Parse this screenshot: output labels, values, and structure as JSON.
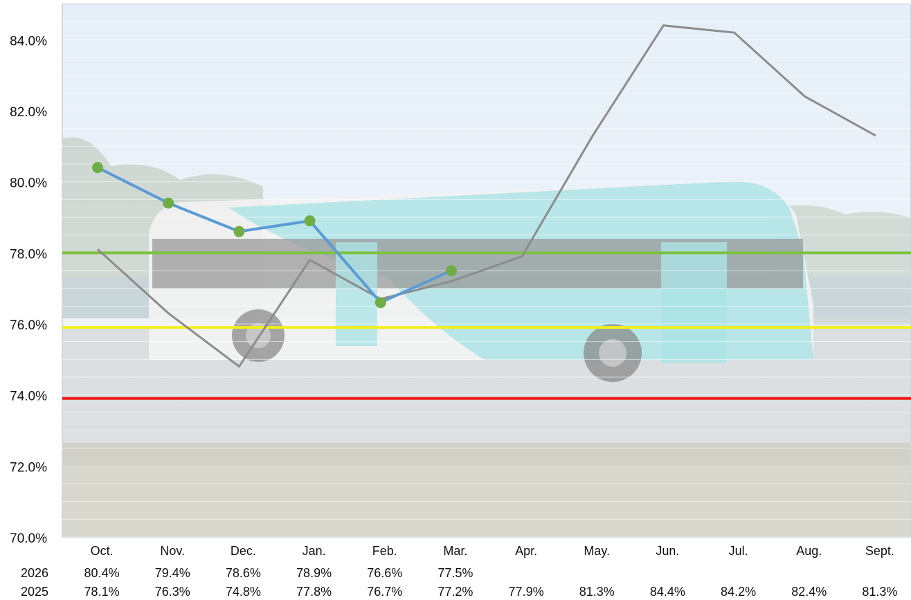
{
  "chart_data": {
    "type": "line",
    "categories": [
      "Oct.",
      "Nov.",
      "Dec.",
      "Jan.",
      "Feb.",
      "Mar.",
      "Apr.",
      "May.",
      "Jun.",
      "Jul.",
      "Aug.",
      "Sept."
    ],
    "series": [
      {
        "name": "2026",
        "values": [
          80.4,
          79.4,
          78.6,
          78.9,
          76.6,
          77.5,
          null,
          null,
          null,
          null,
          null,
          null
        ],
        "labels": [
          "80.4%",
          "79.4%",
          "78.6%",
          "78.9%",
          "76.6%",
          "77.5%",
          "",
          "",
          "",
          "",
          "",
          ""
        ],
        "color": "#5b9bd5",
        "marker_color": "#70ad47"
      },
      {
        "name": "2025",
        "values": [
          78.1,
          76.3,
          74.8,
          77.8,
          76.7,
          77.2,
          77.9,
          81.3,
          84.4,
          84.2,
          82.4,
          81.3
        ],
        "labels": [
          "78.1%",
          "76.3%",
          "74.8%",
          "77.8%",
          "76.7%",
          "77.2%",
          "77.9%",
          "81.3%",
          "84.4%",
          "84.2%",
          "82.4%",
          "81.3%"
        ],
        "color": "#8c8c8c"
      }
    ],
    "reference_lines": [
      {
        "value": 78.0,
        "color": "#7cc242"
      },
      {
        "value": 75.9,
        "color": "#f2ef1a"
      },
      {
        "value": 73.9,
        "color": "#ee1c1c"
      }
    ],
    "ylim": [
      70,
      85
    ],
    "yticks": [
      "70.0%",
      "72.0%",
      "74.0%",
      "76.0%",
      "78.0%",
      "80.0%",
      "82.0%",
      "84.0%"
    ],
    "ytick_values": [
      70,
      72,
      74,
      76,
      78,
      80,
      82,
      84
    ],
    "grid": true,
    "background": "faded photo of a turquoise and white transit bus",
    "title": "",
    "xlabel": "",
    "ylabel": ""
  }
}
